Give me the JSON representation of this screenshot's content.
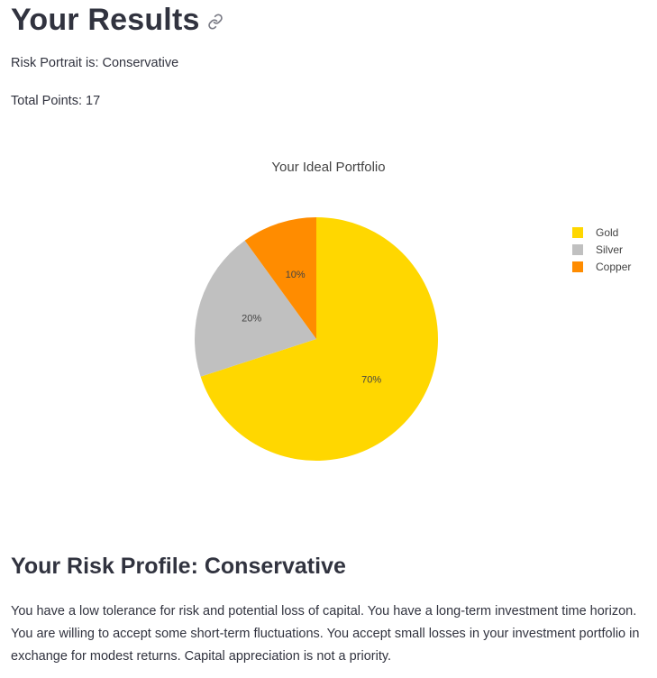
{
  "page": {
    "title": "Your Results",
    "link_icon": "link-icon"
  },
  "summary": {
    "risk_portrait": "Risk Portrait is: Conservative",
    "total_points": "Total Points: 17"
  },
  "chart_data": {
    "type": "pie",
    "title": "Your Ideal Portfolio",
    "categories": [
      "Gold",
      "Silver",
      "Copper"
    ],
    "values": [
      70,
      20,
      10
    ],
    "labels": [
      "70%",
      "20%",
      "10%"
    ],
    "colors": [
      "#ffd700",
      "#c0c0c0",
      "#ff8c00"
    ],
    "legend_position": "right"
  },
  "profile": {
    "heading": "Your Risk Profile: Conservative",
    "description": "You have a low tolerance for risk and potential loss of capital. You have a long-term investment time horizon. You are willing to accept some short-term fluctuations. You accept small losses in your investment portfolio in exchange for modest returns. Capital appreciation is not a priority."
  }
}
